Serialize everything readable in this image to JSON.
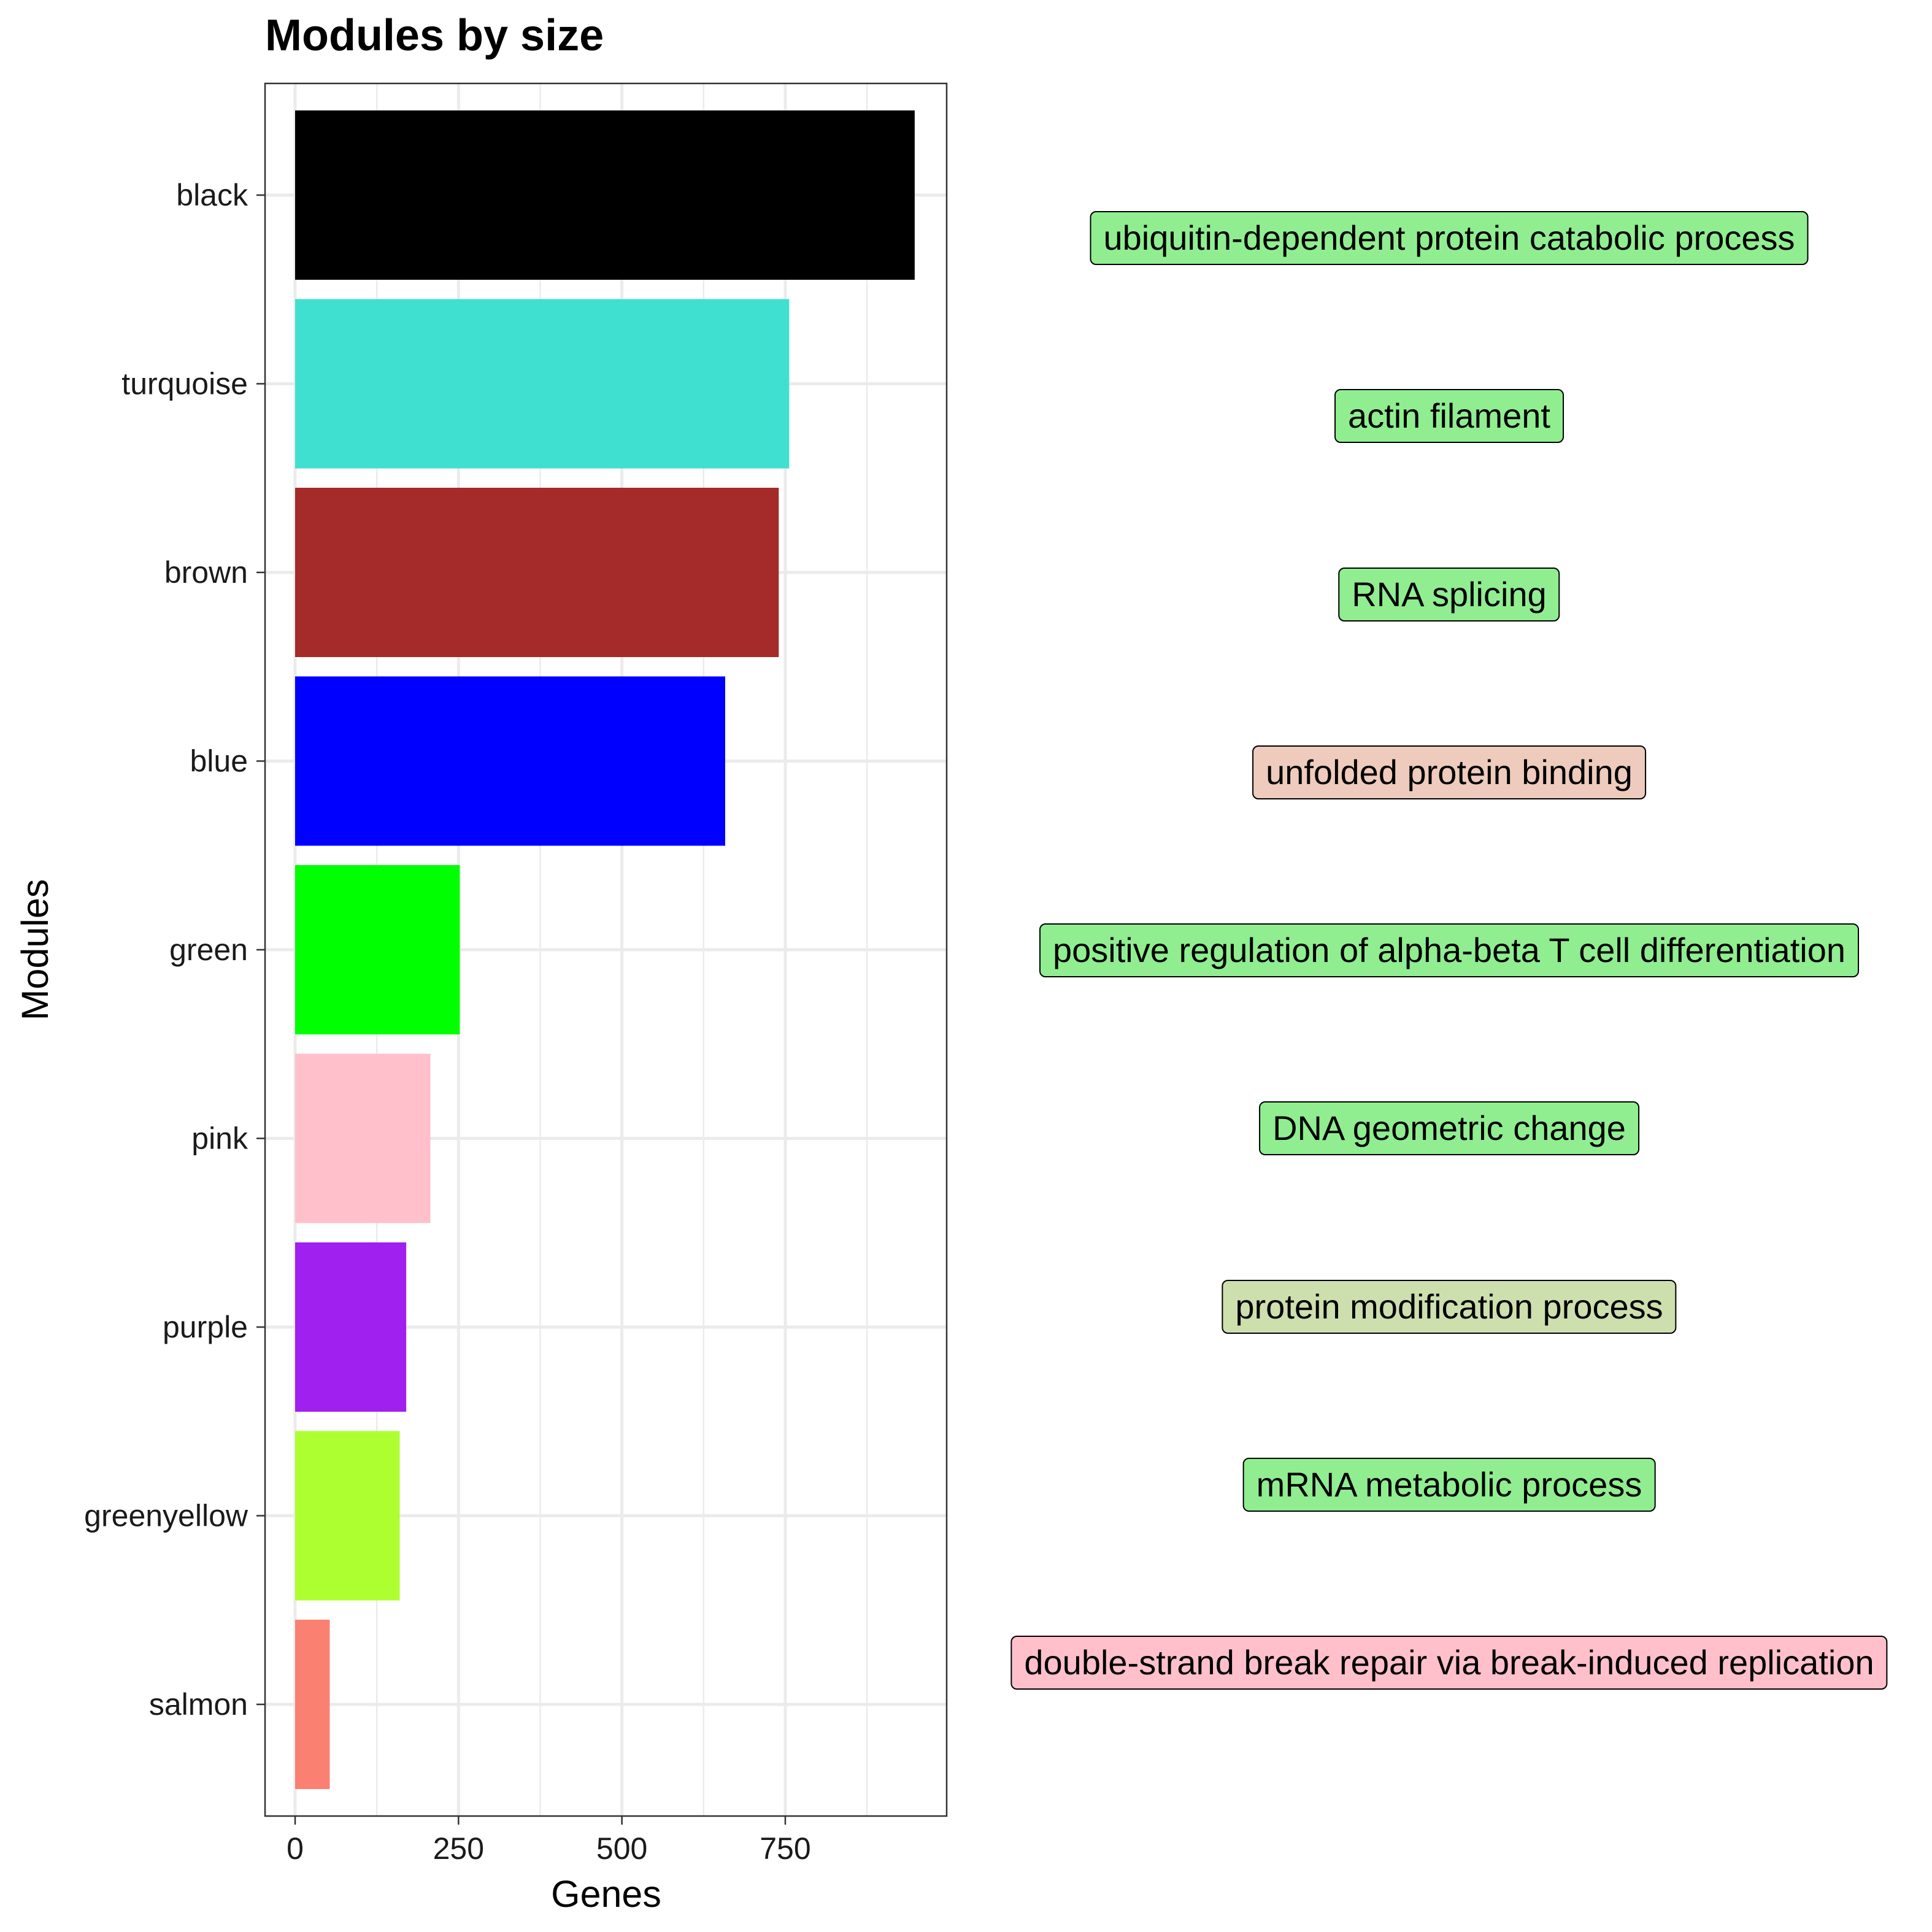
{
  "chart_data": {
    "type": "bar",
    "orientation": "horizontal",
    "title": "Modules by size",
    "xlabel": "Genes",
    "ylabel": "Modules",
    "xlim": [
      0,
      990
    ],
    "xticks": [
      0,
      250,
      500,
      750
    ],
    "grid": true,
    "legend": "none",
    "categories": [
      "black",
      "turquoise",
      "brown",
      "blue",
      "green",
      "pink",
      "purple",
      "greenyellow",
      "salmon"
    ],
    "values": [
      948,
      756,
      740,
      658,
      252,
      207,
      170,
      160,
      53
    ],
    "bar_colors": [
      "#000000",
      "#40E0D0",
      "#A52A2A",
      "#0000FF",
      "#00FF00",
      "#FFC0CB",
      "#A020F0",
      "#ADFF2F",
      "#FA8072"
    ],
    "annotations": [
      {
        "module": "black",
        "text": "ubiquitin-dependent protein catabolic process",
        "fill": "#90EE90"
      },
      {
        "module": "turquoise",
        "text": "actin filament",
        "fill": "#90EE90"
      },
      {
        "module": "brown",
        "text": "RNA splicing",
        "fill": "#90EE90"
      },
      {
        "module": "blue",
        "text": "unfolded protein binding",
        "fill": "#EECBBC"
      },
      {
        "module": "green",
        "text": "positive regulation of alpha-beta T cell differentiation",
        "fill": "#90EE90"
      },
      {
        "module": "pink",
        "text": "DNA geometric change",
        "fill": "#90EE90"
      },
      {
        "module": "purple",
        "text": "protein modification process",
        "fill": "#CEDFAE"
      },
      {
        "module": "greenyellow",
        "text": "mRNA metabolic process",
        "fill": "#90EE90"
      },
      {
        "module": "salmon",
        "text": "double-strand break repair via break-induced replication",
        "fill": "#FFC0CB"
      }
    ]
  }
}
